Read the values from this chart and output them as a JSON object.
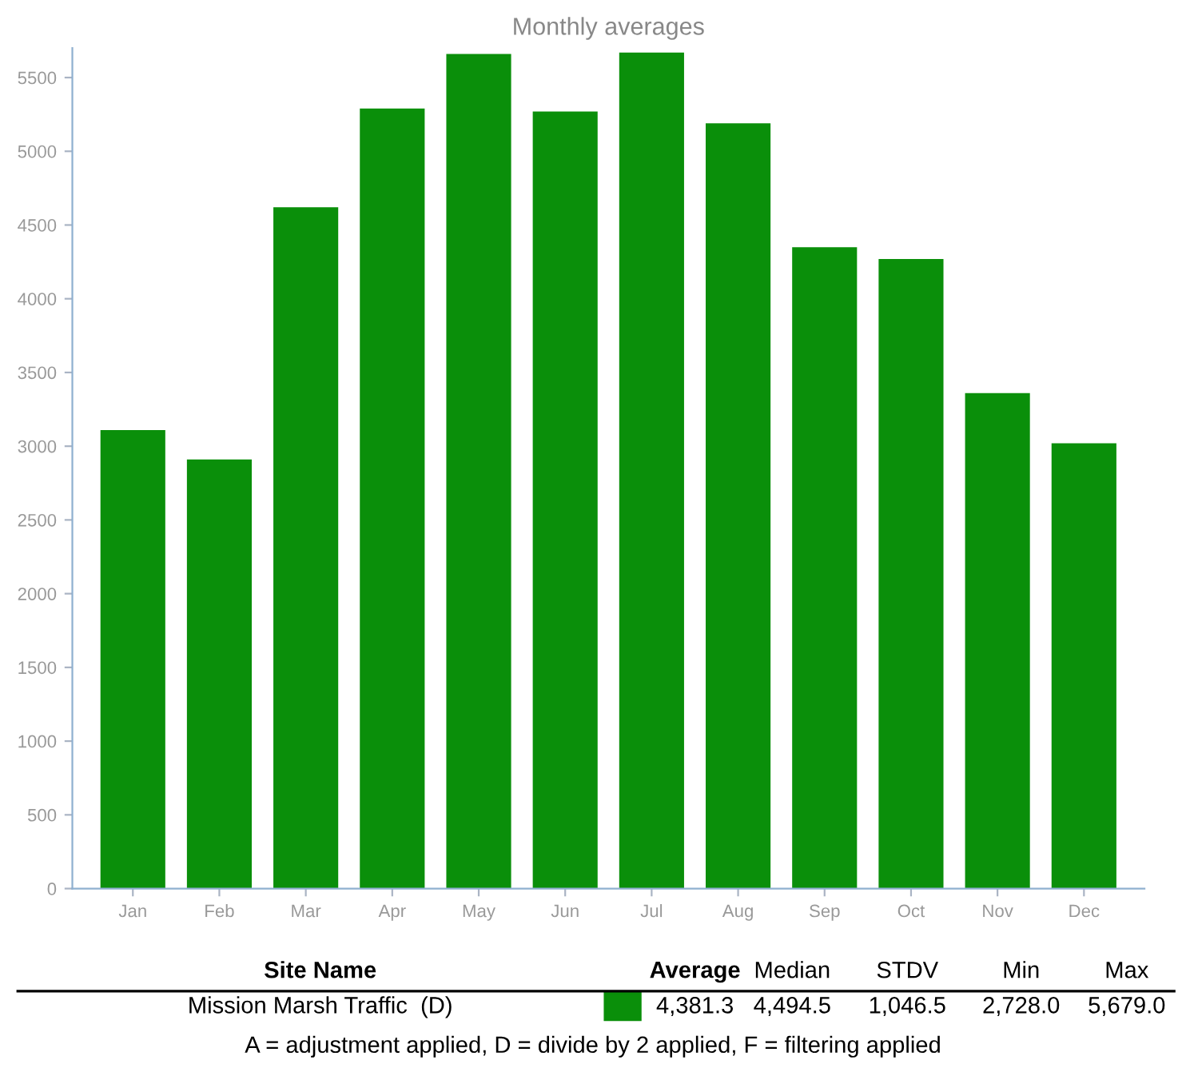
{
  "chart_data": {
    "type": "bar",
    "title": "Monthly averages",
    "categories": [
      "Jan",
      "Feb",
      "Mar",
      "Apr",
      "May",
      "Jun",
      "Jul",
      "Aug",
      "Sep",
      "Oct",
      "Nov",
      "Dec"
    ],
    "values": [
      3110,
      2910,
      4620,
      5290,
      5660,
      5270,
      5670,
      5190,
      4350,
      4270,
      3360,
      3020
    ],
    "color": "#0a8f0a",
    "ylim": [
      0,
      5700
    ],
    "yticks": [
      0,
      500,
      1000,
      1500,
      2000,
      2500,
      3000,
      3500,
      4000,
      4500,
      5000,
      5500
    ],
    "grid": false,
    "legend": false,
    "annotations": [
      "Site Name",
      "Average",
      "Median",
      "STDV",
      "Min",
      "Max",
      "Mission Marsh Traffic  (D)",
      "4,381.3",
      "4,494.5",
      "1,046.5",
      "2,728.0",
      "5,679.0",
      "A = adjustment applied, D = divide by 2 applied, F = filtering applied"
    ]
  }
}
